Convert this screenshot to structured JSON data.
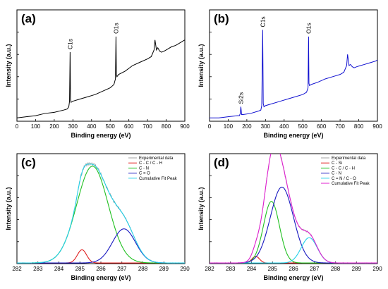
{
  "chart_data": [
    {
      "id": "a",
      "type": "line",
      "panel_label": "(a)",
      "xlabel": "Binding energy (eV)",
      "ylabel": "Intensity (a.u.)",
      "xlim": [
        0,
        900
      ],
      "ylim": [
        0,
        100
      ],
      "xticks": [
        0,
        100,
        200,
        300,
        400,
        500,
        600,
        700,
        800,
        900
      ],
      "y_tick_labels": false,
      "series": [
        {
          "color": "#000000",
          "x": [
            0,
            50,
            100,
            150,
            200,
            250,
            270,
            278,
            282,
            285,
            287,
            290,
            300,
            340,
            380,
            420,
            460,
            500,
            520,
            528,
            531,
            533,
            536,
            545,
            580,
            620,
            660,
            700,
            720,
            735,
            740,
            748,
            755,
            765,
            775,
            790,
            810,
            830,
            850,
            870,
            890,
            900
          ],
          "y": [
            3,
            4,
            5,
            7,
            8,
            10,
            11,
            13,
            18,
            62,
            20,
            17,
            18,
            20,
            22,
            24,
            27,
            30,
            33,
            38,
            76,
            42,
            40,
            42,
            45,
            50,
            53,
            56,
            58,
            64,
            73,
            64,
            66,
            63,
            62,
            63,
            65,
            67,
            68,
            70,
            72,
            73
          ]
        }
      ],
      "annotations": [
        {
          "text": "C1s",
          "x": 285,
          "y": 62
        },
        {
          "text": "O1s",
          "x": 531,
          "y": 76
        }
      ]
    },
    {
      "id": "b",
      "type": "line",
      "panel_label": "(b)",
      "xlabel": "Binding energy (eV)",
      "ylabel": "Intensity (a.u.)",
      "xlim": [
        0,
        900
      ],
      "ylim": [
        0,
        100
      ],
      "xticks": [
        0,
        100,
        200,
        300,
        400,
        500,
        600,
        700,
        800,
        900
      ],
      "y_tick_labels": false,
      "series": [
        {
          "color": "#1010d0",
          "x": [
            0,
            50,
            100,
            150,
            160,
            165,
            168,
            172,
            180,
            220,
            260,
            275,
            280,
            285,
            288,
            292,
            300,
            340,
            380,
            420,
            460,
            500,
            520,
            528,
            531,
            533,
            536,
            545,
            580,
            620,
            660,
            700,
            720,
            735,
            740,
            748,
            755,
            765,
            775,
            790,
            810,
            830,
            850,
            870,
            890,
            900
          ],
          "y": [
            3,
            3,
            4,
            5,
            5,
            7,
            13,
            6,
            6,
            7,
            9,
            10,
            14,
            82,
            16,
            13,
            14,
            16,
            18,
            20,
            22,
            24,
            26,
            30,
            76,
            34,
            32,
            33,
            35,
            38,
            40,
            42,
            44,
            50,
            60,
            50,
            51,
            49,
            48,
            49,
            50,
            51,
            52,
            53,
            54,
            55
          ]
        }
      ],
      "annotations": [
        {
          "text": "Si2s",
          "x": 168,
          "y": 13
        },
        {
          "text": "C1s",
          "x": 285,
          "y": 82
        },
        {
          "text": "O1s",
          "x": 531,
          "y": 76
        }
      ]
    },
    {
      "id": "c",
      "type": "line",
      "panel_label": "(c)",
      "xlabel": "Binding energy (eV)",
      "ylabel": "Intensity (a.u.)",
      "xlim": [
        282,
        290
      ],
      "ylim": [
        0,
        100
      ],
      "xticks": [
        282,
        283,
        284,
        285,
        286,
        287,
        288,
        289,
        290
      ],
      "y_tick_labels": false,
      "legend": {
        "position": "top-right"
      },
      "series": [
        {
          "name": "Experimental data",
          "color": "#a0a0a0",
          "style": "experimental"
        },
        {
          "name": "C - C / C - H",
          "color": "#e02020",
          "peak": {
            "center": 285.1,
            "amplitude": 12,
            "sigma": 0.22
          }
        },
        {
          "name": "C - N",
          "color": "#20c020",
          "peak": {
            "center": 285.6,
            "amplitude": 88,
            "sigma": 0.75
          }
        },
        {
          "name": "C = O",
          "color": "#1818c0",
          "peak": {
            "center": 287.1,
            "amplitude": 31,
            "sigma": 0.55
          }
        },
        {
          "name": "Cumulative Fit Peak",
          "color": "#22d0e8",
          "style": "cumulative"
        }
      ]
    },
    {
      "id": "d",
      "type": "line",
      "panel_label": "(d)",
      "xlabel": "Binding energy (eV)",
      "ylabel": "Intensity (a.u.)",
      "xlim": [
        282,
        290
      ],
      "ylim": [
        0,
        100
      ],
      "xticks": [
        282,
        283,
        284,
        285,
        286,
        287,
        288,
        289,
        290
      ],
      "y_tick_labels": false,
      "legend": {
        "position": "top-right"
      },
      "series": [
        {
          "name": "Experimental data",
          "color": "#a0a0a0",
          "style": "experimental"
        },
        {
          "name": "C - Si",
          "color": "#e02020",
          "peak": {
            "center": 284.2,
            "amplitude": 6,
            "sigma": 0.18
          }
        },
        {
          "name": "C - C / C - H",
          "color": "#20c020",
          "peak": {
            "center": 284.95,
            "amplitude": 56,
            "sigma": 0.38
          }
        },
        {
          "name": "C - N",
          "color": "#1818c0",
          "peak": {
            "center": 285.45,
            "amplitude": 69,
            "sigma": 0.55
          }
        },
        {
          "name": "C = N / C - O",
          "color": "#22d0e8",
          "peak": {
            "center": 286.75,
            "amplitude": 23,
            "sigma": 0.38
          }
        },
        {
          "name": "Cumulative Fit Peak",
          "color": "#e020d0",
          "style": "cumulative"
        }
      ]
    }
  ]
}
